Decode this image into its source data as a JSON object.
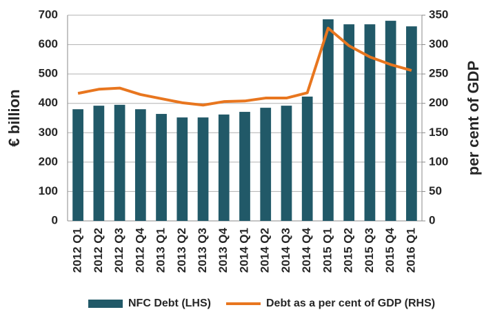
{
  "chart_data": {
    "type": "bar_line",
    "categories": [
      "2012 Q1",
      "2012 Q2",
      "2012 Q3",
      "2012 Q4",
      "2013 Q1",
      "2013 Q2",
      "2013 Q3",
      "2013 Q4",
      "2014 Q1",
      "2014 Q2",
      "2014 Q3",
      "2014 Q4",
      "2015 Q1",
      "2015 Q2",
      "2015 Q3",
      "2015 Q4",
      "2016 Q1"
    ],
    "series": [
      {
        "name": "NFC Debt (LHS)",
        "color": "#215968",
        "type": "bar",
        "values": [
          380,
          392,
          395,
          380,
          364,
          352,
          352,
          362,
          371,
          385,
          392,
          423,
          686,
          669,
          669,
          681,
          662
        ]
      },
      {
        "name": "Debt as a per cent of GDP (RHS)",
        "color": "#e8761f",
        "type": "line",
        "axis": "y2",
        "values": [
          217,
          224,
          226,
          215,
          208,
          201,
          197,
          203,
          204,
          209,
          209,
          218,
          328,
          298,
          279,
          266,
          256
        ]
      }
    ],
    "ylabel": "€ billion",
    "y2label": "per cent of GDP",
    "ylim": [
      0,
      700
    ],
    "yticks": [
      0,
      100,
      200,
      300,
      400,
      500,
      600,
      700
    ],
    "y2lim": [
      0,
      350
    ],
    "y2ticks": [
      0,
      50,
      100,
      150,
      200,
      250,
      300,
      350
    ],
    "grid": true,
    "legend": "bottom"
  }
}
